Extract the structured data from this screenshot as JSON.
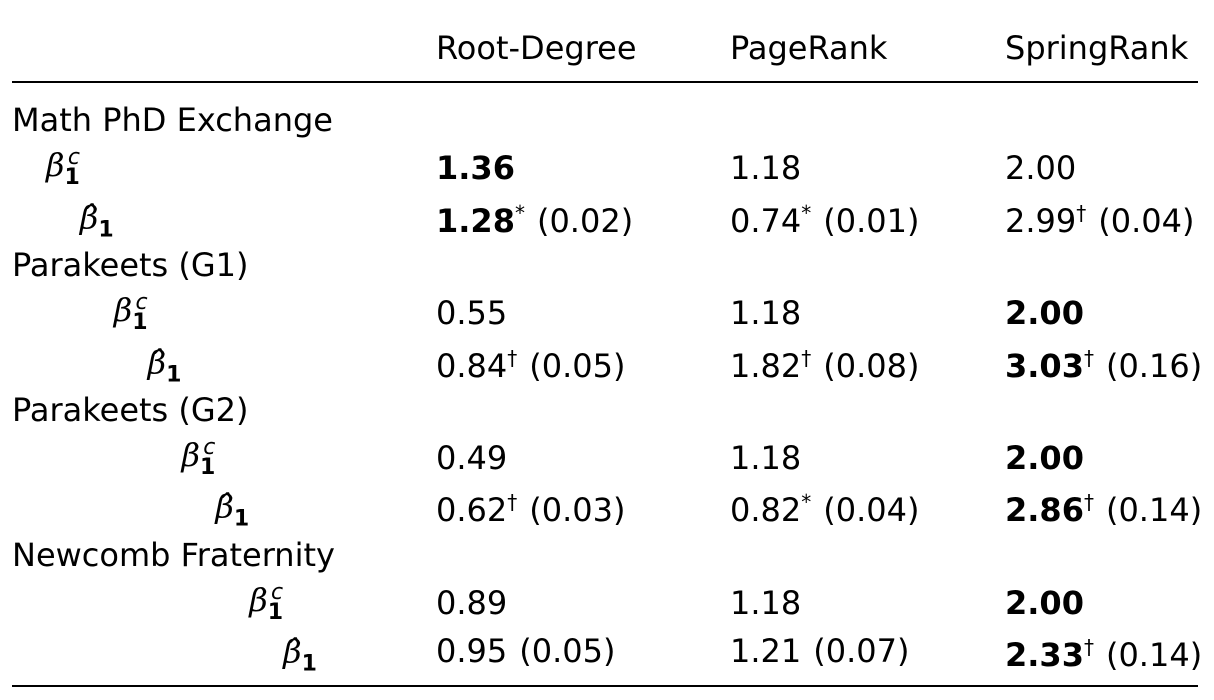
{
  "table": {
    "columns": [
      "Root-Degree",
      "PageRank",
      "SpringRank"
    ],
    "groups": [
      {
        "name": "Math PhD Exchange",
        "rows": [
          {
            "label": {
              "symbol": "β",
              "sub": "1",
              "sup": "c"
            },
            "cells": [
              {
                "value": "1.36",
                "bold": true
              },
              {
                "value": "1.18",
                "bold": false
              },
              {
                "value": "2.00",
                "bold": false
              }
            ]
          },
          {
            "label": {
              "symbol": "β̂",
              "sub": "1"
            },
            "cells": [
              {
                "value": "1.28",
                "bold": true,
                "mark": "*",
                "se": "(0.02)"
              },
              {
                "value": "0.74",
                "bold": false,
                "mark": "*",
                "se": "(0.01)"
              },
              {
                "value": "2.99",
                "bold": false,
                "mark": "†",
                "se": "(0.04)"
              }
            ]
          }
        ]
      },
      {
        "name": "Parakeets (G1)",
        "rows": [
          {
            "label": {
              "symbol": "β",
              "sub": "1",
              "sup": "c"
            },
            "cells": [
              {
                "value": "0.55",
                "bold": false
              },
              {
                "value": "1.18",
                "bold": false
              },
              {
                "value": "2.00",
                "bold": true
              }
            ]
          },
          {
            "label": {
              "symbol": "β̂",
              "sub": "1"
            },
            "cells": [
              {
                "value": "0.84",
                "bold": false,
                "mark": "†",
                "se": "(0.05)"
              },
              {
                "value": "1.82",
                "bold": false,
                "mark": "†",
                "se": "(0.08)"
              },
              {
                "value": "3.03",
                "bold": true,
                "mark": "†",
                "se": "(0.16)"
              }
            ]
          }
        ]
      },
      {
        "name": "Parakeets (G2)",
        "rows": [
          {
            "label": {
              "symbol": "β",
              "sub": "1",
              "sup": "c"
            },
            "cells": [
              {
                "value": "0.49",
                "bold": false
              },
              {
                "value": "1.18",
                "bold": false
              },
              {
                "value": "2.00",
                "bold": true
              }
            ]
          },
          {
            "label": {
              "symbol": "β̂",
              "sub": "1"
            },
            "cells": [
              {
                "value": "0.62",
                "bold": false,
                "mark": "†",
                "se": "(0.03)"
              },
              {
                "value": "0.82",
                "bold": false,
                "mark": "*",
                "se": "(0.04)"
              },
              {
                "value": "2.86",
                "bold": true,
                "mark": "†",
                "se": "(0.14)"
              }
            ]
          }
        ]
      },
      {
        "name": "Newcomb Fraternity",
        "rows": [
          {
            "label": {
              "symbol": "β",
              "sub": "1",
              "sup": "c"
            },
            "cells": [
              {
                "value": "0.89",
                "bold": false
              },
              {
                "value": "1.18",
                "bold": false
              },
              {
                "value": "2.00",
                "bold": true
              }
            ]
          },
          {
            "label": {
              "symbol": "β̂",
              "sub": "1"
            },
            "cells": [
              {
                "value": "0.95",
                "bold": false,
                "se": "(0.05)"
              },
              {
                "value": "1.21",
                "bold": false,
                "se": "(0.07)"
              },
              {
                "value": "2.33",
                "bold": true,
                "mark": "†",
                "se": "(0.14)"
              }
            ]
          }
        ]
      }
    ]
  }
}
